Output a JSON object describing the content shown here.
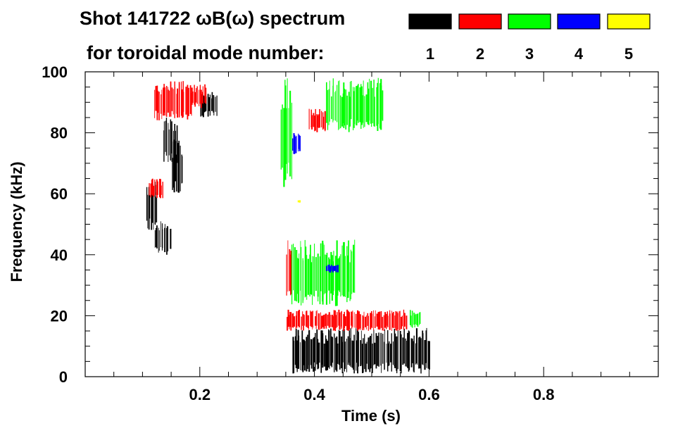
{
  "chart_data": {
    "type": "heatmap",
    "title_line1": "Shot 141722 ωB(ω) spectrum",
    "title_line2": "for toroidal mode number:",
    "xlabel": "Time (s)",
    "ylabel": "Frequency (kHz)",
    "xlim": [
      0.0,
      1.0
    ],
    "ylim": [
      0,
      100
    ],
    "xticks": [
      0.2,
      0.4,
      0.6,
      0.8
    ],
    "xtick_labels": [
      "0.2",
      "0.4",
      "0.6",
      "0.8"
    ],
    "yticks": [
      0,
      20,
      40,
      60,
      80,
      100
    ],
    "ytick_labels": [
      "0",
      "20",
      "40",
      "60",
      "80",
      "100"
    ],
    "legend_placement": "top-right",
    "series": [
      {
        "name": "1",
        "color": "#000000",
        "regions": [
          {
            "t": [
              0.105,
              0.125
            ],
            "f": [
              48,
              64
            ]
          },
          {
            "t": [
              0.12,
              0.148
            ],
            "f": [
              40,
              52
            ]
          },
          {
            "t": [
              0.135,
              0.16
            ],
            "f": [
              70,
              85
            ]
          },
          {
            "t": [
              0.15,
              0.17
            ],
            "f": [
              60,
              78
            ]
          },
          {
            "t": [
              0.2,
              0.23
            ],
            "f": [
              85,
              94
            ]
          },
          {
            "t": [
              0.36,
              0.6
            ],
            "f": [
              1,
              16
            ]
          }
        ]
      },
      {
        "name": "2",
        "color": "#ff0000",
        "regions": [
          {
            "t": [
              0.12,
              0.185
            ],
            "f": [
              84,
              97
            ]
          },
          {
            "t": [
              0.185,
              0.21
            ],
            "f": [
              88,
              96
            ]
          },
          {
            "t": [
              0.11,
              0.135
            ],
            "f": [
              58,
              65
            ]
          },
          {
            "t": [
              0.35,
              0.36
            ],
            "f": [
              25,
              45
            ]
          },
          {
            "t": [
              0.35,
              0.56
            ],
            "f": [
              15,
              22
            ]
          },
          {
            "t": [
              0.39,
              0.42
            ],
            "f": [
              80,
              88
            ]
          }
        ]
      },
      {
        "name": "3",
        "color": "#00ff00",
        "regions": [
          {
            "t": [
              0.34,
              0.36
            ],
            "f": [
              62,
              98
            ]
          },
          {
            "t": [
              0.36,
              0.47
            ],
            "f": [
              23,
              45
            ]
          },
          {
            "t": [
              0.42,
              0.52
            ],
            "f": [
              80,
              98
            ]
          },
          {
            "t": [
              0.565,
              0.585
            ],
            "f": [
              16,
              22
            ]
          }
        ]
      },
      {
        "name": "4",
        "color": "#0000ff",
        "regions": [
          {
            "t": [
              0.36,
              0.375
            ],
            "f": [
              73,
              80
            ]
          },
          {
            "t": [
              0.42,
              0.44
            ],
            "f": [
              34,
              37
            ]
          }
        ]
      },
      {
        "name": "5",
        "color": "#ffff00",
        "regions": [
          {
            "t": [
              0.37,
              0.375
            ],
            "f": [
              57,
              58
            ]
          }
        ]
      }
    ]
  }
}
